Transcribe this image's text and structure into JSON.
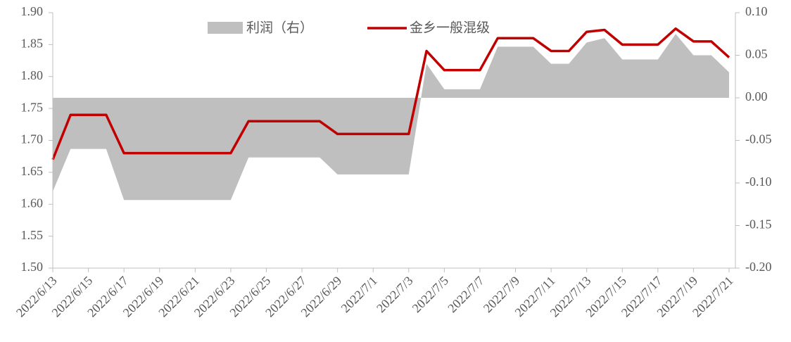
{
  "chart_data": {
    "type": "line",
    "categories": [
      "2022/6/13",
      null,
      "2022/6/15",
      null,
      "2022/6/17",
      null,
      "2022/6/19",
      null,
      "2022/6/21",
      null,
      "2022/6/23",
      null,
      "2022/6/25",
      null,
      "2022/6/27",
      null,
      "2022/6/29",
      null,
      "2022/7/1",
      null,
      "2022/7/3",
      null,
      "2022/7/5",
      null,
      "2022/7/7",
      null,
      "2022/7/9",
      null,
      "2022/7/11",
      null,
      "2022/7/13",
      null,
      "2022/7/15",
      null,
      "2022/7/17",
      null,
      "2022/7/19",
      null,
      "2022/7/21"
    ],
    "series": [
      {
        "name": "利润（右）",
        "color": "#bfbfbf",
        "axis": "y2",
        "kind": "area",
        "values": [
          -0.11,
          -0.06,
          -0.06,
          -0.06,
          -0.12,
          -0.12,
          -0.12,
          -0.12,
          -0.12,
          -0.12,
          -0.12,
          -0.07,
          -0.07,
          -0.07,
          -0.07,
          -0.07,
          -0.09,
          -0.09,
          -0.09,
          -0.09,
          -0.09,
          0.04,
          0.01,
          0.01,
          0.01,
          0.06,
          0.06,
          0.06,
          0.04,
          0.04,
          0.065,
          0.07,
          0.045,
          0.045,
          0.045,
          0.075,
          0.05,
          0.05,
          0.03
        ]
      },
      {
        "name": "金乡一般混级",
        "color": "#c00000",
        "values": [
          1.67,
          1.74,
          1.74,
          1.74,
          1.68,
          1.68,
          1.68,
          1.68,
          1.68,
          1.68,
          1.68,
          1.73,
          1.73,
          1.73,
          1.73,
          1.73,
          1.71,
          1.71,
          1.71,
          1.71,
          1.71,
          1.84,
          1.81,
          1.81,
          1.81,
          1.86,
          1.86,
          1.86,
          1.84,
          1.84,
          1.87,
          1.873,
          1.85,
          1.85,
          1.85,
          1.875,
          1.855,
          1.855,
          1.83
        ]
      }
    ],
    "ylim": [
      1.5,
      1.9
    ],
    "yticks": [
      {
        "value": 1.5,
        "label": "1.50"
      },
      {
        "value": 1.55,
        "label": "1.55"
      },
      {
        "value": 1.6,
        "label": "1.60"
      },
      {
        "value": 1.65,
        "label": "1.65"
      },
      {
        "value": 1.7,
        "label": "1.70"
      },
      {
        "value": 1.75,
        "label": "1.75"
      },
      {
        "value": 1.8,
        "label": "1.80"
      },
      {
        "value": 1.85,
        "label": "1.85"
      },
      {
        "value": 1.9,
        "label": "1.90"
      }
    ],
    "y2lim": [
      -0.2,
      0.1
    ],
    "y2ticks": [
      {
        "value": -0.2,
        "label": "-0.20"
      },
      {
        "value": -0.15,
        "label": "-0.15"
      },
      {
        "value": -0.1,
        "label": "-0.10"
      },
      {
        "value": -0.05,
        "label": "-0.05"
      },
      {
        "value": 0,
        "label": "0.00"
      },
      {
        "value": 0.05,
        "label": "0.05"
      },
      {
        "value": 0.1,
        "label": "0.10"
      }
    ],
    "legend": "top"
  }
}
